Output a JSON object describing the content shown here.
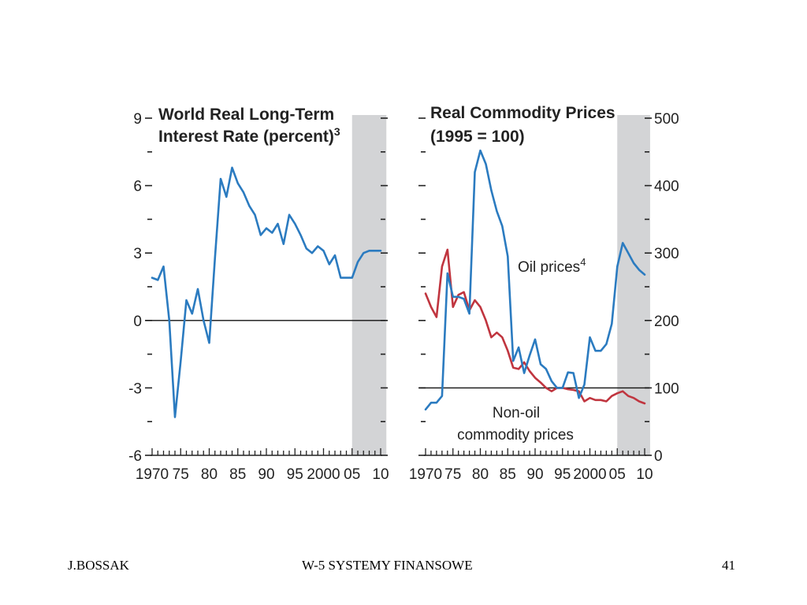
{
  "chart_data": [
    {
      "type": "line",
      "title": "World Real Long-Term",
      "subtitle": "Interest Rate (percent)",
      "title_superscript": "3",
      "xlim": [
        1970,
        2010
      ],
      "ylim": [
        -6,
        9
      ],
      "x_tick_labels": [
        {
          "x": 1970,
          "label": "1970"
        },
        {
          "x": 1975,
          "label": "75"
        },
        {
          "x": 1980,
          "label": "80"
        },
        {
          "x": 1985,
          "label": "85"
        },
        {
          "x": 1990,
          "label": "90"
        },
        {
          "x": 1995,
          "label": "95"
        },
        {
          "x": 2000,
          "label": "2000"
        },
        {
          "x": 2005,
          "label": "05"
        },
        {
          "x": 2010,
          "label": "10"
        }
      ],
      "y_ticks": [
        -6,
        -3,
        0,
        3,
        6,
        9
      ],
      "y_tick_labels": [
        "-6",
        "-3",
        "0",
        "3",
        "6",
        "9"
      ],
      "reference_line": 0,
      "shaded_range": [
        2005,
        2011
      ],
      "series": [
        {
          "color": "#2b7bc0",
          "x": [
            1970,
            1971,
            1972,
            1973,
            1974,
            1975,
            1976,
            1977,
            1978,
            1979,
            1980,
            1981,
            1982,
            1983,
            1984,
            1985,
            1986,
            1987,
            1988,
            1989,
            1990,
            1991,
            1992,
            1993,
            1994,
            1995,
            1996,
            1997,
            1998,
            1999,
            2000,
            2001,
            2002,
            2003,
            2004,
            2005,
            2006,
            2007,
            2008,
            2009,
            2010
          ],
          "values": [
            1.9,
            1.8,
            2.4,
            0.0,
            -4.3,
            -1.8,
            0.9,
            0.3,
            1.4,
            0.0,
            -1.0,
            2.8,
            6.3,
            5.5,
            6.8,
            6.1,
            5.7,
            5.1,
            4.7,
            3.8,
            4.1,
            3.9,
            4.3,
            3.4,
            4.7,
            4.3,
            3.8,
            3.2,
            3.0,
            3.3,
            3.1,
            2.5,
            2.9,
            1.9,
            1.9,
            1.9,
            2.6,
            3.0,
            3.1,
            3.1,
            3.1
          ]
        }
      ]
    },
    {
      "type": "line",
      "title": "Real Commodity Prices",
      "subtitle": "(1995 = 100)",
      "xlim": [
        1970,
        2010
      ],
      "ylim": [
        0,
        500
      ],
      "x_tick_labels": [
        {
          "x": 1970,
          "label": "1970"
        },
        {
          "x": 1975,
          "label": "75"
        },
        {
          "x": 1980,
          "label": "80"
        },
        {
          "x": 1985,
          "label": "85"
        },
        {
          "x": 1990,
          "label": "90"
        },
        {
          "x": 1995,
          "label": "95"
        },
        {
          "x": 2000,
          "label": "2000"
        },
        {
          "x": 2005,
          "label": "05"
        },
        {
          "x": 2010,
          "label": "10"
        }
      ],
      "y_ticks": [
        0,
        100,
        200,
        300,
        400,
        500
      ],
      "y_tick_labels": [
        "0",
        "100",
        "200",
        "300",
        "400",
        "500"
      ],
      "reference_line": 100,
      "shaded_range": [
        2005,
        2011
      ],
      "series": [
        {
          "name": "Oil prices",
          "name_superscript": "4",
          "color": "#2b7bc0",
          "x": [
            1970,
            1971,
            1972,
            1973,
            1974,
            1975,
            1976,
            1977,
            1978,
            1979,
            1980,
            1981,
            1982,
            1983,
            1984,
            1985,
            1986,
            1987,
            1988,
            1989,
            1990,
            1991,
            1992,
            1993,
            1994,
            1995,
            1996,
            1997,
            1998,
            1999,
            2000,
            2001,
            2002,
            2003,
            2004,
            2005,
            2006,
            2007,
            2008,
            2009,
            2010
          ],
          "values": [
            68,
            78,
            78,
            88,
            270,
            235,
            235,
            232,
            210,
            420,
            452,
            432,
            393,
            362,
            340,
            295,
            140,
            160,
            122,
            148,
            172,
            135,
            128,
            110,
            100,
            100,
            123,
            122,
            85,
            105,
            175,
            155,
            155,
            165,
            195,
            280,
            315,
            300,
            285,
            275,
            268
          ]
        },
        {
          "name": "Non-oil commodity prices",
          "color": "#c0353f",
          "x": [
            1970,
            1971,
            1972,
            1973,
            1974,
            1975,
            1976,
            1977,
            1978,
            1979,
            1980,
            1981,
            1982,
            1983,
            1984,
            1985,
            1986,
            1987,
            1988,
            1989,
            1990,
            1991,
            1992,
            1993,
            1994,
            1995,
            1996,
            1997,
            1998,
            1999,
            2000,
            2001,
            2002,
            2003,
            2004,
            2005,
            2006,
            2007,
            2008,
            2009,
            2010
          ],
          "values": [
            240,
            220,
            205,
            280,
            305,
            220,
            238,
            242,
            215,
            230,
            220,
            200,
            175,
            182,
            175,
            155,
            130,
            128,
            138,
            125,
            115,
            108,
            100,
            95,
            100,
            100,
            98,
            97,
            95,
            80,
            85,
            82,
            82,
            80,
            88,
            92,
            95,
            88,
            85,
            80,
            77
          ]
        }
      ],
      "annotations": [
        {
          "text": "Oil prices",
          "superscript": "4"
        },
        {
          "text": "Non-oil"
        },
        {
          "text": "commodity prices"
        }
      ]
    }
  ],
  "footer": {
    "left": "J.BOSSAK",
    "center": "W-5 SYSTEMY  FINANSOWE",
    "right": "41"
  }
}
